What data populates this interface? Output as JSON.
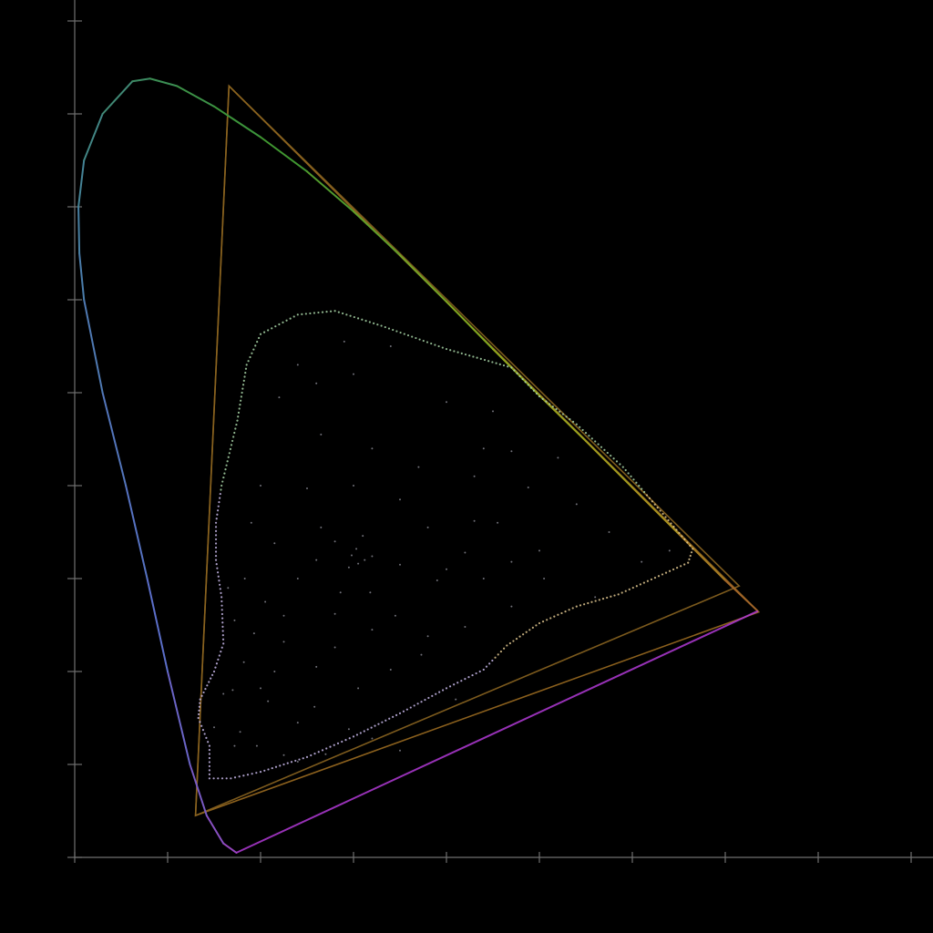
{
  "chart_data": {
    "type": "scatter",
    "title": "",
    "xlabel": "",
    "ylabel": "",
    "xlim": [
      0.0,
      0.9
    ],
    "ylim": [
      0.0,
      0.9
    ],
    "x_ticks": [
      0.0,
      0.1,
      0.2,
      0.3,
      0.4,
      0.5,
      0.6,
      0.7,
      0.8,
      0.9
    ],
    "y_ticks": [
      0.0,
      0.1,
      0.2,
      0.3,
      0.4,
      0.5,
      0.6,
      0.7,
      0.8,
      0.9
    ],
    "tick_labels_visible": false,
    "grid": false,
    "legend": "none",
    "colors": {
      "background": "#000000",
      "axis": "#707070",
      "wide_gamut_outline": "#9a6a20",
      "narrow_gamut_outline": "#8a6420",
      "purple_line": "#b13ad6",
      "ordering_hull_dots": "#c9b6e8",
      "interior_dots": "#8c8c96"
    },
    "series": [
      {
        "kind": "spectral_locus",
        "points": [
          [
            0.174,
            0.005
          ],
          [
            0.16,
            0.015
          ],
          [
            0.142,
            0.045
          ],
          [
            0.124,
            0.1
          ],
          [
            0.1,
            0.2
          ],
          [
            0.078,
            0.3
          ],
          [
            0.055,
            0.4
          ],
          [
            0.03,
            0.5
          ],
          [
            0.01,
            0.6
          ],
          [
            0.005,
            0.65
          ],
          [
            0.004,
            0.7
          ],
          [
            0.01,
            0.75
          ],
          [
            0.03,
            0.8
          ],
          [
            0.062,
            0.835
          ],
          [
            0.081,
            0.838
          ],
          [
            0.11,
            0.83
          ],
          [
            0.15,
            0.808
          ],
          [
            0.2,
            0.775
          ],
          [
            0.25,
            0.738
          ],
          [
            0.3,
            0.695
          ],
          [
            0.35,
            0.648
          ],
          [
            0.4,
            0.598
          ],
          [
            0.45,
            0.547
          ],
          [
            0.5,
            0.497
          ],
          [
            0.55,
            0.448
          ],
          [
            0.6,
            0.398
          ],
          [
            0.65,
            0.348
          ],
          [
            0.7,
            0.298
          ],
          [
            0.735,
            0.265
          ]
        ]
      },
      {
        "kind": "purple_line",
        "points": [
          [
            0.735,
            0.265
          ],
          [
            0.174,
            0.005
          ]
        ]
      },
      {
        "kind": "gamut_triangle_wide",
        "points": [
          [
            0.736,
            0.264
          ],
          [
            0.166,
            0.83
          ],
          [
            0.13,
            0.045
          ]
        ]
      },
      {
        "kind": "gamut_triangle_inner",
        "points": [
          [
            0.715,
            0.292
          ],
          [
            0.166,
            0.83
          ],
          [
            0.13,
            0.045
          ]
        ]
      },
      {
        "kind": "boundary_dots",
        "points": [
          [
            0.145,
            0.085
          ],
          [
            0.168,
            0.085
          ],
          [
            0.2,
            0.092
          ],
          [
            0.25,
            0.108
          ],
          [
            0.3,
            0.13
          ],
          [
            0.35,
            0.155
          ],
          [
            0.4,
            0.182
          ],
          [
            0.44,
            0.202
          ],
          [
            0.465,
            0.228
          ],
          [
            0.5,
            0.252
          ],
          [
            0.54,
            0.27
          ],
          [
            0.585,
            0.283
          ],
          [
            0.66,
            0.317
          ],
          [
            0.665,
            0.332
          ],
          [
            0.63,
            0.373
          ],
          [
            0.59,
            0.42
          ],
          [
            0.54,
            0.466
          ],
          [
            0.5,
            0.496
          ],
          [
            0.47,
            0.527
          ],
          [
            0.4,
            0.547
          ],
          [
            0.33,
            0.572
          ],
          [
            0.28,
            0.588
          ],
          [
            0.24,
            0.584
          ],
          [
            0.2,
            0.563
          ],
          [
            0.185,
            0.53
          ],
          [
            0.175,
            0.47
          ],
          [
            0.158,
            0.4
          ],
          [
            0.152,
            0.36
          ],
          [
            0.152,
            0.32
          ],
          [
            0.158,
            0.28
          ],
          [
            0.16,
            0.23
          ],
          [
            0.15,
            0.2
          ],
          [
            0.135,
            0.17
          ],
          [
            0.133,
            0.15
          ],
          [
            0.145,
            0.12
          ],
          [
            0.145,
            0.085
          ]
        ]
      },
      {
        "kind": "interior_samples",
        "points": [
          [
            0.298,
            0.325
          ],
          [
            0.305,
            0.316
          ],
          [
            0.312,
            0.32
          ],
          [
            0.303,
            0.332
          ],
          [
            0.295,
            0.312
          ],
          [
            0.32,
            0.324
          ],
          [
            0.31,
            0.346
          ],
          [
            0.286,
            0.285
          ],
          [
            0.318,
            0.285
          ],
          [
            0.28,
            0.262
          ],
          [
            0.345,
            0.26
          ],
          [
            0.225,
            0.232
          ],
          [
            0.373,
            0.218
          ],
          [
            0.26,
            0.205
          ],
          [
            0.41,
            0.17
          ],
          [
            0.2,
            0.182
          ],
          [
            0.35,
            0.115
          ],
          [
            0.172,
            0.12
          ],
          [
            0.225,
            0.11
          ],
          [
            0.295,
            0.138
          ],
          [
            0.39,
            0.298
          ],
          [
            0.42,
            0.328
          ],
          [
            0.455,
            0.36
          ],
          [
            0.488,
            0.398
          ],
          [
            0.52,
            0.43
          ],
          [
            0.575,
            0.35
          ],
          [
            0.61,
            0.318
          ],
          [
            0.64,
            0.33
          ],
          [
            0.56,
            0.28
          ],
          [
            0.42,
            0.248
          ],
          [
            0.265,
            0.455
          ],
          [
            0.22,
            0.495
          ],
          [
            0.24,
            0.53
          ],
          [
            0.29,
            0.555
          ],
          [
            0.34,
            0.55
          ],
          [
            0.4,
            0.49
          ],
          [
            0.45,
            0.48
          ],
          [
            0.47,
            0.437
          ],
          [
            0.43,
            0.41
          ],
          [
            0.37,
            0.42
          ],
          [
            0.32,
            0.44
          ],
          [
            0.25,
            0.397
          ],
          [
            0.215,
            0.338
          ],
          [
            0.183,
            0.3
          ],
          [
            0.172,
            0.255
          ],
          [
            0.182,
            0.21
          ],
          [
            0.208,
            0.168
          ],
          [
            0.258,
            0.162
          ],
          [
            0.305,
            0.182
          ],
          [
            0.34,
            0.202
          ],
          [
            0.38,
            0.238
          ],
          [
            0.47,
            0.27
          ],
          [
            0.505,
            0.3
          ],
          [
            0.47,
            0.318
          ],
          [
            0.43,
            0.362
          ],
          [
            0.38,
            0.355
          ],
          [
            0.35,
            0.385
          ],
          [
            0.3,
            0.4
          ],
          [
            0.265,
            0.355
          ],
          [
            0.24,
            0.3
          ],
          [
            0.225,
            0.26
          ],
          [
            0.205,
            0.275
          ],
          [
            0.193,
            0.241
          ],
          [
            0.16,
            0.176
          ],
          [
            0.15,
            0.14
          ],
          [
            0.17,
            0.18
          ],
          [
            0.178,
            0.135
          ],
          [
            0.196,
            0.12
          ],
          [
            0.24,
            0.103
          ],
          [
            0.27,
            0.111
          ],
          [
            0.32,
            0.128
          ],
          [
            0.24,
            0.145
          ],
          [
            0.32,
            0.245
          ],
          [
            0.35,
            0.315
          ],
          [
            0.28,
            0.34
          ],
          [
            0.26,
            0.32
          ],
          [
            0.4,
            0.31
          ],
          [
            0.44,
            0.3
          ],
          [
            0.44,
            0.44
          ],
          [
            0.54,
            0.38
          ],
          [
            0.5,
            0.33
          ],
          [
            0.3,
            0.52
          ],
          [
            0.26,
            0.51
          ],
          [
            0.2,
            0.4
          ],
          [
            0.19,
            0.36
          ],
          [
            0.165,
            0.29
          ],
          [
            0.215,
            0.2
          ],
          [
            0.28,
            0.226
          ]
        ]
      }
    ]
  }
}
